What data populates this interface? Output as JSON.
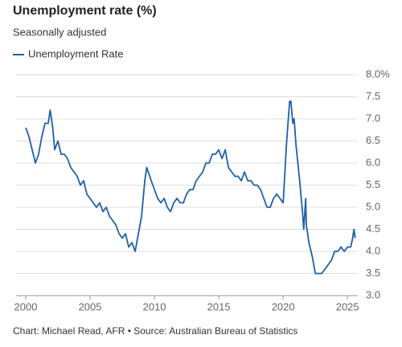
{
  "chart_data": {
    "type": "line",
    "title": "Unemployment rate (%)",
    "subtitle": "Seasonally adjusted",
    "source": "Chart: Michael Read, AFR • Source: Australian Bureau of Statistics",
    "x": [
      2000.0,
      2000.25,
      2000.5,
      2000.75,
      2001.0,
      2001.25,
      2001.5,
      2001.75,
      2001.9,
      2002.1,
      2002.25,
      2002.5,
      2002.75,
      2003.0,
      2003.25,
      2003.5,
      2003.75,
      2004.0,
      2004.25,
      2004.5,
      2004.75,
      2005.0,
      2005.25,
      2005.5,
      2005.75,
      2006.0,
      2006.25,
      2006.5,
      2006.75,
      2007.0,
      2007.25,
      2007.5,
      2007.75,
      2008.0,
      2008.25,
      2008.5,
      2008.75,
      2009.0,
      2009.25,
      2009.4,
      2009.75,
      2010.0,
      2010.25,
      2010.5,
      2010.75,
      2011.0,
      2011.25,
      2011.5,
      2011.75,
      2012.0,
      2012.25,
      2012.5,
      2012.75,
      2013.0,
      2013.25,
      2013.5,
      2013.75,
      2014.0,
      2014.25,
      2014.5,
      2014.75,
      2015.0,
      2015.25,
      2015.5,
      2015.75,
      2016.0,
      2016.25,
      2016.5,
      2016.75,
      2017.0,
      2017.25,
      2017.5,
      2017.75,
      2018.0,
      2018.25,
      2018.5,
      2018.75,
      2019.0,
      2019.25,
      2019.5,
      2019.75,
      2020.0,
      2020.25,
      2020.5,
      2020.6,
      2020.75,
      2020.85,
      2021.0,
      2021.25,
      2021.5,
      2021.6,
      2021.75,
      2021.8,
      2022.0,
      2022.25,
      2022.5,
      2022.75,
      2023.0,
      2023.25,
      2023.5,
      2023.75,
      2024.0,
      2024.25,
      2024.5,
      2024.75,
      2025.0,
      2025.25,
      2025.4,
      2025.5,
      2025.6
    ],
    "series": [
      {
        "name": "Unemployment Rate",
        "color": "#1f5fa8",
        "values": [
          6.8,
          6.6,
          6.3,
          6.0,
          6.2,
          6.6,
          6.9,
          6.9,
          7.2,
          6.8,
          6.3,
          6.5,
          6.2,
          6.2,
          6.1,
          5.9,
          5.8,
          5.7,
          5.5,
          5.6,
          5.3,
          5.2,
          5.1,
          5.0,
          5.1,
          4.9,
          5.0,
          4.8,
          4.7,
          4.6,
          4.4,
          4.3,
          4.4,
          4.1,
          4.2,
          4.0,
          4.4,
          4.8,
          5.6,
          5.9,
          5.6,
          5.4,
          5.2,
          5.1,
          5.2,
          5.0,
          4.9,
          5.1,
          5.2,
          5.1,
          5.1,
          5.3,
          5.4,
          5.4,
          5.6,
          5.7,
          5.8,
          6.0,
          6.0,
          6.2,
          6.2,
          6.3,
          6.1,
          6.3,
          5.9,
          5.8,
          5.7,
          5.7,
          5.6,
          5.8,
          5.6,
          5.6,
          5.5,
          5.5,
          5.4,
          5.2,
          5.0,
          5.0,
          5.2,
          5.3,
          5.2,
          5.1,
          6.4,
          7.4,
          7.4,
          6.9,
          7.0,
          6.4,
          5.7,
          4.9,
          4.5,
          5.2,
          4.6,
          4.2,
          3.9,
          3.5,
          3.5,
          3.5,
          3.6,
          3.7,
          3.8,
          4.0,
          4.0,
          4.1,
          4.0,
          4.1,
          4.1,
          4.3,
          4.5,
          4.3
        ]
      }
    ],
    "xlim": [
      1999.25,
      2025.8
    ],
    "xticks": [
      2000,
      2005,
      2010,
      2015,
      2020,
      2025
    ],
    "ylim": [
      3.0,
      8.0
    ],
    "yticks": [
      {
        "value": 3,
        "label": "3.0"
      },
      3.5,
      {
        "value": 4,
        "label": "4.0"
      },
      4.5,
      {
        "value": 5,
        "label": "5.0"
      },
      5.5,
      {
        "value": 6,
        "label": "6.0"
      },
      6.5,
      {
        "value": 7,
        "label": "7.0"
      },
      7.5,
      {
        "value": 8,
        "label": "8.0%"
      }
    ],
    "grid": true,
    "legend": "top-left"
  }
}
